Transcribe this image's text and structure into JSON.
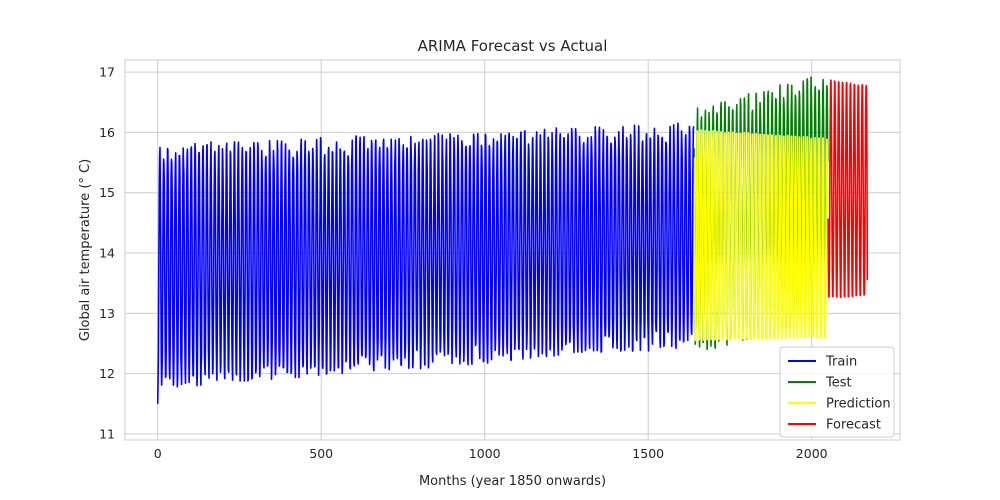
{
  "chart_data": {
    "type": "line",
    "title": "ARIMA Forecast vs Actual",
    "xlabel": "Months (year 1850 onwards)",
    "ylabel": "Global air temperature (° C)",
    "xlim": [
      -100,
      2270
    ],
    "ylim": [
      10.9,
      17.2
    ],
    "xticks": [
      0,
      500,
      1000,
      1500,
      2000
    ],
    "yticks": [
      11,
      12,
      13,
      14,
      15,
      16,
      17
    ],
    "grid": true,
    "legend_position": "lower-right",
    "series": [
      {
        "name": "Train",
        "color": "#0000ff",
        "x_range": [
          0,
          1639
        ],
        "mean": 13.75,
        "peak_start": 15.7,
        "peak_end": 16.05,
        "trough_start": 11.85,
        "trough_end": 12.55,
        "first_value": 11.5
      },
      {
        "name": "Test",
        "color": "#008000",
        "x_range": [
          1640,
          2049
        ],
        "mean": 14.55,
        "peak_start": 16.3,
        "peak_end": 16.9,
        "trough_start": 12.45,
        "trough_end": 12.95
      },
      {
        "name": "Prediction",
        "color": "#ffff00",
        "x_range": [
          1640,
          2049
        ],
        "mean": 14.3,
        "peak_start": 16.1,
        "peak_end": 15.95,
        "trough_start": 12.5,
        "trough_end": 12.55
      },
      {
        "name": "Forecast",
        "color": "#ff0000",
        "x_range": [
          2050,
          2170
        ],
        "mean": 15.05,
        "peak_start": 16.92,
        "peak_end": 16.82,
        "trough_start": 13.2,
        "trough_end": 13.25,
        "last_value": 13.55
      }
    ]
  }
}
